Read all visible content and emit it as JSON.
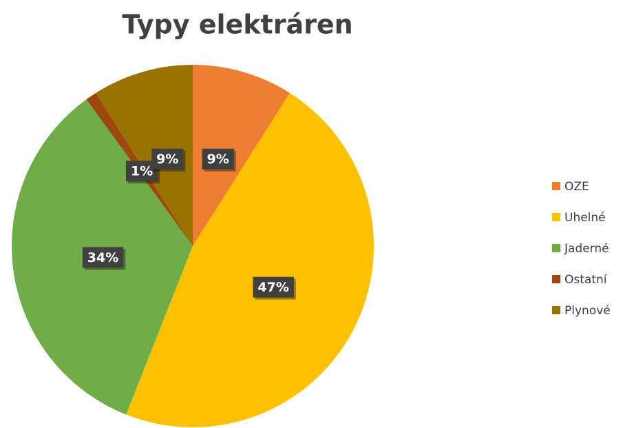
{
  "chart_data": {
    "type": "pie",
    "title": "Typy elektráren",
    "categories": [
      "OZE",
      "Uhelné",
      "Jaderné",
      "Ostatní",
      "Plynové"
    ],
    "values": [
      9,
      47,
      34,
      1,
      9
    ],
    "value_labels": [
      "9%",
      "47%",
      "34%",
      "1%",
      "9%"
    ],
    "colors": [
      "#ed7d31",
      "#ffc000",
      "#70ad47",
      "#9e480e",
      "#997300"
    ],
    "legend": "right"
  }
}
